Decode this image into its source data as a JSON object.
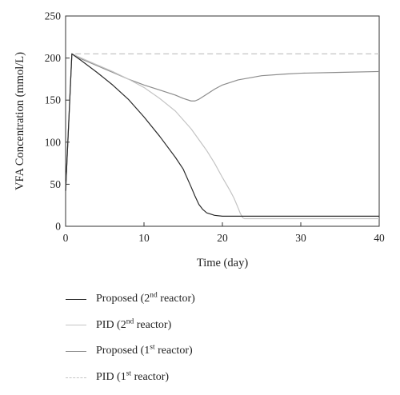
{
  "chart_data": {
    "type": "line",
    "xlabel": "Time (day)",
    "ylabel": "VFA Concentration (mmol/L)",
    "xlim": [
      0,
      40
    ],
    "ylim": [
      0,
      250
    ],
    "x_ticks": [
      0,
      10,
      20,
      30,
      40
    ],
    "y_ticks": [
      0,
      50,
      100,
      150,
      200,
      250
    ],
    "grid": false,
    "legend_position": "below",
    "series": [
      {
        "name": "Proposed (2nd reactor)",
        "label_main": "Proposed (2",
        "label_sup": "nd",
        "label_tail": " reactor)",
        "color": "#2a2a2a",
        "dash": "solid",
        "x": [
          0,
          0.8,
          2,
          4,
          6,
          8,
          10,
          12,
          14,
          15,
          16,
          16.5,
          17,
          17.5,
          18,
          19,
          20,
          22,
          25,
          30,
          35,
          40
        ],
        "y": [
          42,
          205,
          197,
          183,
          168,
          151,
          130,
          107,
          82,
          68,
          47,
          36,
          26,
          20,
          16,
          13,
          12,
          12,
          12,
          12,
          12,
          12
        ]
      },
      {
        "name": "PID (2nd reactor)",
        "label_main": "PID (2",
        "label_sup": "nd",
        "label_tail": " reactor)",
        "color": "#c4c4c4",
        "dash": "solid",
        "x": [
          0,
          0.8,
          2,
          4,
          6,
          8,
          10,
          12,
          14,
          16,
          18,
          19,
          20,
          21,
          21.5,
          22,
          22.3,
          22.6,
          22.8,
          23,
          25,
          30,
          35,
          40
        ],
        "y": [
          42,
          205,
          200,
          192,
          184,
          175,
          165,
          152,
          137,
          116,
          90,
          75,
          58,
          42,
          33,
          22,
          15,
          10,
          9,
          9,
          9,
          9,
          9,
          9
        ]
      },
      {
        "name": "Proposed (1st reactor)",
        "label_main": "Proposed (1",
        "label_sup": "st",
        "label_tail": " reactor)",
        "color": "#8c8c8c",
        "dash": "solid",
        "x": [
          0,
          0.8,
          2,
          4,
          6,
          8,
          10,
          12,
          14,
          15,
          16,
          16.5,
          17,
          18,
          19,
          20,
          22,
          25,
          28,
          30,
          35,
          40
        ],
        "y": [
          42,
          205,
          199,
          191,
          183,
          175,
          168,
          162,
          156,
          152,
          149,
          149,
          151,
          157,
          163,
          168,
          174,
          179,
          181,
          182,
          183,
          184
        ]
      },
      {
        "name": "PID (1st reactor)",
        "label_main": "PID (1",
        "label_sup": "st",
        "label_tail": " reactor)",
        "color": "#c4c4c4",
        "dash": "dashed",
        "x": [
          0,
          0.8,
          40
        ],
        "y": [
          42,
          205,
          205
        ]
      }
    ]
  }
}
